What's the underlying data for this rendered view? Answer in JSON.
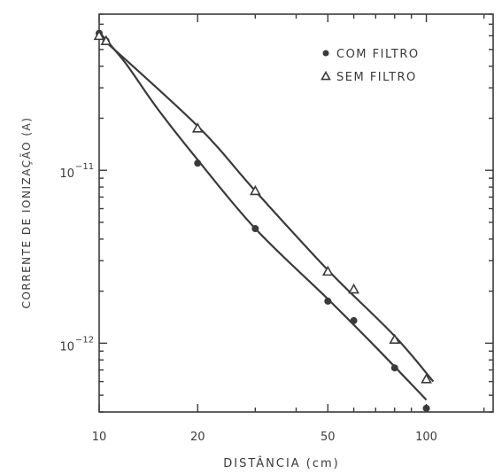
{
  "chart_data": {
    "type": "scatter",
    "title": "",
    "xlabel": "DISTÂNCIA (cm)",
    "ylabel": "CORRENTE DE IONIZAÇÃO (A)",
    "x_scale": "log",
    "y_scale": "log",
    "xlim": [
      10,
      160
    ],
    "ylim": [
      4e-13,
      8e-11
    ],
    "x_ticks": [
      {
        "value": 10,
        "label": "10"
      },
      {
        "value": 20,
        "label": "20"
      },
      {
        "value": 50,
        "label": "50"
      },
      {
        "value": 100,
        "label": "100"
      }
    ],
    "y_ticks": [
      {
        "value": 1e-11,
        "label": "10",
        "exponent": "−11"
      },
      {
        "value": 1e-12,
        "label": "10",
        "exponent": "−12"
      }
    ],
    "grid": false,
    "legend_position": "top-right",
    "series": [
      {
        "name": "COM FILTRO",
        "marker": "circle",
        "color": "#3a3a3a",
        "x": [
          10,
          10.5,
          20,
          30,
          50,
          60,
          80,
          100
        ],
        "y": [
          6.2e-11,
          5.6e-11,
          1.1e-11,
          4.6e-12,
          1.75e-12,
          1.35e-12,
          7.2e-13,
          4.2e-13
        ],
        "fit": {
          "x": [
            10,
            12,
            15,
            20,
            30,
            50,
            70,
            100
          ],
          "y": [
            6.3e-11,
            4.2e-11,
            2.3e-11,
            1.15e-11,
            4.6e-12,
            1.8e-12,
            9.5e-13,
            4.7e-13
          ]
        }
      },
      {
        "name": "SEM FILTRO",
        "marker": "triangle",
        "color": "#3a3a3a",
        "x": [
          10,
          10.5,
          20,
          30,
          50,
          60,
          80,
          100
        ],
        "y": [
          6e-11,
          5.6e-11,
          1.75e-11,
          7.6e-12,
          2.6e-12,
          2.05e-12,
          1.05e-12,
          6.2e-13
        ],
        "fit": {
          "x": [
            10,
            20,
            30,
            50,
            80,
            105
          ],
          "y": [
            6e-11,
            1.8e-11,
            7.6e-12,
            2.65e-12,
            1.1e-12,
            6e-13
          ]
        }
      }
    ]
  }
}
